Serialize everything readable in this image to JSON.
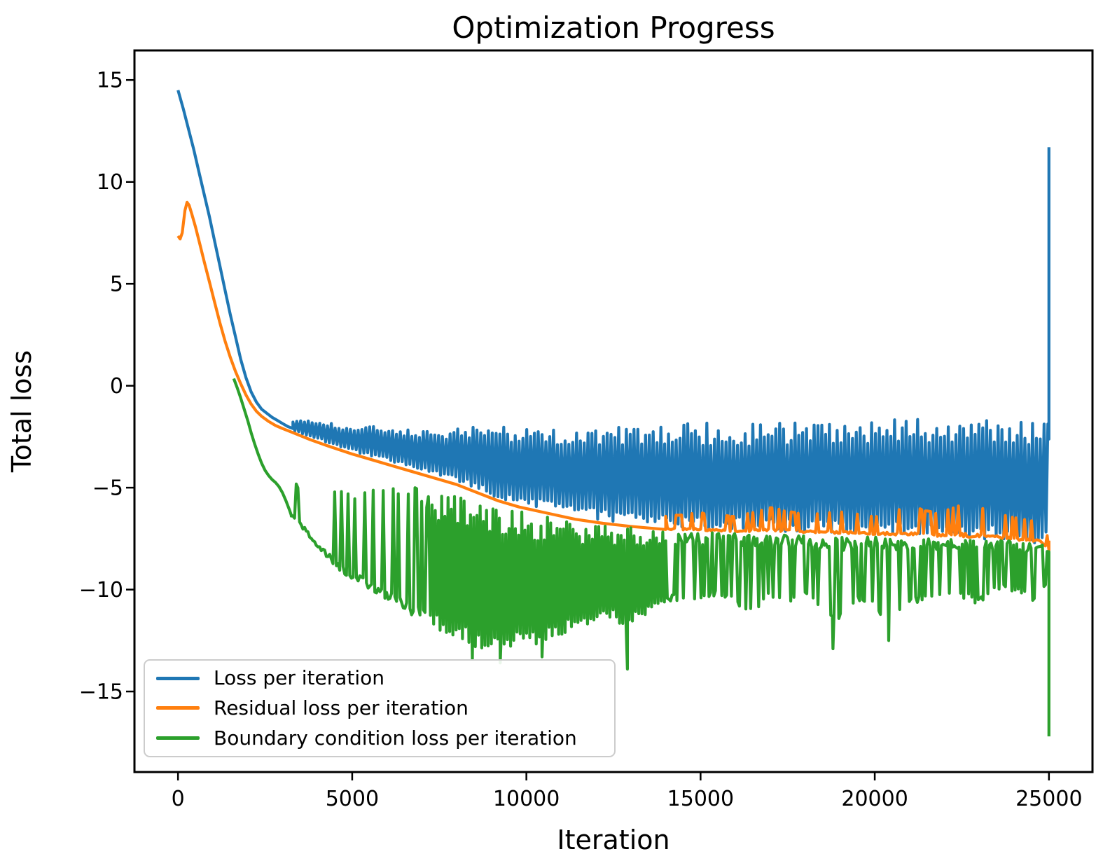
{
  "chart_data": {
    "type": "line",
    "title": "Optimization Progress",
    "xlabel": "Iteration",
    "ylabel": "Total loss",
    "x_ticks": [
      0,
      5000,
      10000,
      15000,
      20000,
      25000
    ],
    "y_ticks": [
      -15,
      -10,
      -5,
      0,
      5,
      10,
      15
    ],
    "xlim": [
      -1250,
      26250
    ],
    "ylim": [
      -18.95,
      16.45
    ],
    "grid": false,
    "legend_position": "lower left",
    "series": [
      {
        "name": "Loss per iteration",
        "color": "#1f77b4",
        "smooth": [
          [
            0,
            14.5
          ],
          [
            150,
            13.6
          ],
          [
            300,
            12.6
          ],
          [
            450,
            11.6
          ],
          [
            600,
            10.5
          ],
          [
            750,
            9.4
          ],
          [
            900,
            8.3
          ],
          [
            1050,
            7.1
          ],
          [
            1200,
            5.9
          ],
          [
            1350,
            4.7
          ],
          [
            1500,
            3.5
          ],
          [
            1650,
            2.4
          ],
          [
            1800,
            1.3
          ],
          [
            1950,
            0.4
          ],
          [
            2100,
            -0.3
          ],
          [
            2250,
            -0.8
          ],
          [
            2400,
            -1.15
          ],
          [
            2550,
            -1.35
          ],
          [
            2700,
            -1.55
          ],
          [
            2850,
            -1.7
          ],
          [
            3000,
            -1.85
          ],
          [
            3150,
            -2.0
          ],
          [
            3300,
            -2.1
          ]
        ],
        "bands": [
          {
            "mode": "fill",
            "from": 3300,
            "to": 25000,
            "step": 55,
            "nodes": [
              [
                3300,
                -2.2,
                -1.7
              ],
              [
                3800,
                -2.5,
                -1.6
              ],
              [
                4300,
                -2.8,
                -1.8
              ],
              [
                5000,
                -3.2,
                -2.0
              ],
              [
                5600,
                -3.5,
                -2.0
              ],
              [
                6200,
                -3.8,
                -2.1
              ],
              [
                6800,
                -4.1,
                -2.2
              ],
              [
                7400,
                -4.4,
                -2.2
              ],
              [
                8000,
                -4.7,
                -2.1
              ],
              [
                8600,
                -5.1,
                -2.0
              ],
              [
                9200,
                -5.5,
                -2.0
              ],
              [
                9800,
                -5.8,
                -1.95
              ],
              [
                10600,
                -6.1,
                -2.0
              ],
              [
                11400,
                -6.4,
                -1.9
              ],
              [
                12200,
                -6.6,
                -2.0
              ],
              [
                13000,
                -6.75,
                -1.85
              ],
              [
                14000,
                -6.9,
                -1.9
              ],
              [
                15000,
                -7.0,
                -1.8
              ],
              [
                16000,
                -7.05,
                -1.9
              ],
              [
                17000,
                -7.1,
                -1.75
              ],
              [
                18000,
                -7.2,
                -1.8
              ],
              [
                19000,
                -7.25,
                -1.65
              ],
              [
                20000,
                -7.3,
                -1.75
              ],
              [
                21000,
                -7.35,
                -1.6
              ],
              [
                22000,
                -7.45,
                -1.65
              ],
              [
                23000,
                -7.5,
                -1.5
              ],
              [
                24000,
                -7.6,
                -1.6
              ],
              [
                25000,
                -7.8,
                -1.7
              ]
            ]
          }
        ],
        "spikes": [
          [
            25000,
            11.7
          ]
        ]
      },
      {
        "name": "Residual loss per iteration",
        "color": "#ff7f0e",
        "smooth": [
          [
            0,
            7.35
          ],
          [
            60,
            7.2
          ],
          [
            120,
            7.5
          ],
          [
            200,
            8.6
          ],
          [
            260,
            9.0
          ],
          [
            320,
            8.85
          ],
          [
            400,
            8.4
          ],
          [
            500,
            7.8
          ],
          [
            620,
            7.0
          ],
          [
            750,
            6.1
          ],
          [
            900,
            5.1
          ],
          [
            1050,
            4.1
          ],
          [
            1200,
            3.1
          ],
          [
            1350,
            2.2
          ],
          [
            1500,
            1.4
          ],
          [
            1650,
            0.7
          ],
          [
            1800,
            0.1
          ],
          [
            1950,
            -0.45
          ],
          [
            2100,
            -0.9
          ],
          [
            2250,
            -1.25
          ],
          [
            2400,
            -1.5
          ],
          [
            2600,
            -1.75
          ],
          [
            2800,
            -1.95
          ],
          [
            3000,
            -2.1
          ],
          [
            3300,
            -2.3
          ],
          [
            3800,
            -2.65
          ],
          [
            4300,
            -2.95
          ],
          [
            5000,
            -3.35
          ],
          [
            5600,
            -3.65
          ],
          [
            6200,
            -3.95
          ],
          [
            6800,
            -4.25
          ],
          [
            7400,
            -4.55
          ],
          [
            8000,
            -4.85
          ],
          [
            8600,
            -5.25
          ],
          [
            9200,
            -5.65
          ],
          [
            9800,
            -5.95
          ],
          [
            10600,
            -6.25
          ],
          [
            11400,
            -6.55
          ],
          [
            12200,
            -6.75
          ],
          [
            13000,
            -6.9
          ],
          [
            14000,
            -7.05
          ]
        ],
        "bands": [
          {
            "mode": "needle-up",
            "from": 14000,
            "to": 25000,
            "step": 50,
            "nodes": [
              [
                14000,
                -7.1,
                -6.3
              ],
              [
                15000,
                -7.15,
                -6.1
              ],
              [
                16000,
                -7.2,
                -6.3
              ],
              [
                17000,
                -7.2,
                -5.8
              ],
              [
                18000,
                -7.25,
                -6.2
              ],
              [
                19000,
                -7.3,
                -6.0
              ],
              [
                20000,
                -7.35,
                -6.3
              ],
              [
                21000,
                -7.4,
                -5.7
              ],
              [
                21800,
                -7.45,
                -6.1
              ],
              [
                22600,
                -7.5,
                -5.5
              ],
              [
                23400,
                -7.55,
                -6.0
              ],
              [
                24200,
                -7.65,
                -6.4
              ],
              [
                24800,
                -7.75,
                -6.5
              ],
              [
                25000,
                -8.15,
                -7.5
              ]
            ]
          }
        ],
        "spikes": []
      },
      {
        "name": "Boundary condition loss per iteration",
        "color": "#2ca02c",
        "smooth": [
          [
            1600,
            0.35
          ],
          [
            1700,
            -0.1
          ],
          [
            1800,
            -0.6
          ],
          [
            1900,
            -1.15
          ],
          [
            2000,
            -1.7
          ],
          [
            2100,
            -2.3
          ],
          [
            2200,
            -2.85
          ],
          [
            2300,
            -3.35
          ],
          [
            2400,
            -3.8
          ],
          [
            2500,
            -4.15
          ],
          [
            2600,
            -4.4
          ],
          [
            2700,
            -4.6
          ],
          [
            2800,
            -4.75
          ],
          [
            2900,
            -4.95
          ],
          [
            3000,
            -5.25
          ],
          [
            3100,
            -5.65
          ],
          [
            3200,
            -6.1
          ],
          [
            3250,
            -6.35
          ]
        ],
        "bands": [
          {
            "mode": "needle-up",
            "from": 3250,
            "to": 7200,
            "step": 48,
            "nodes": [
              [
                3250,
                -6.5,
                -4.8
              ],
              [
                3600,
                -7.2,
                -4.8
              ],
              [
                4000,
                -8.1,
                -4.85
              ],
              [
                4400,
                -8.9,
                -4.9
              ],
              [
                4800,
                -9.5,
                -4.85
              ],
              [
                5200,
                -9.95,
                -4.9
              ],
              [
                5600,
                -10.4,
                -4.9
              ],
              [
                6000,
                -10.8,
                -4.95
              ],
              [
                6400,
                -11.2,
                -4.9
              ],
              [
                6800,
                -11.6,
                -4.95
              ],
              [
                7200,
                -11.9,
                -5.0
              ]
            ]
          },
          {
            "mode": "fill",
            "from": 7200,
            "to": 14000,
            "step": 46,
            "nodes": [
              [
                7200,
                -11.9,
                -5.0
              ],
              [
                7600,
                -12.2,
                -5.15
              ],
              [
                8000,
                -12.5,
                -5.3
              ],
              [
                8400,
                -12.8,
                -5.5
              ],
              [
                8800,
                -13.0,
                -5.65
              ],
              [
                9200,
                -13.2,
                -5.75
              ],
              [
                9600,
                -12.9,
                -6.0
              ],
              [
                10000,
                -12.6,
                -6.1
              ],
              [
                10400,
                -12.9,
                -6.3
              ],
              [
                10800,
                -12.4,
                -6.45
              ],
              [
                11200,
                -12.1,
                -6.55
              ],
              [
                11600,
                -11.9,
                -6.65
              ],
              [
                12000,
                -11.6,
                -6.7
              ],
              [
                12400,
                -11.4,
                -6.8
              ],
              [
                12800,
                -12.0,
                -6.85
              ],
              [
                13200,
                -11.5,
                -6.95
              ],
              [
                13600,
                -11.1,
                -7.0
              ],
              [
                14000,
                -10.8,
                -7.05
              ]
            ]
          },
          {
            "mode": "needle-down",
            "from": 14000,
            "to": 25000,
            "step": 46,
            "nodes": [
              [
                14000,
                -10.8,
                -7.15
              ],
              [
                14500,
                -10.5,
                -7.18
              ],
              [
                15000,
                -10.6,
                -7.2
              ],
              [
                15500,
                -10.3,
                -7.2
              ],
              [
                16000,
                -10.8,
                -7.25
              ],
              [
                16500,
                -11.2,
                -7.25
              ],
              [
                17000,
                -10.4,
                -7.28
              ],
              [
                17500,
                -10.7,
                -7.3
              ],
              [
                18000,
                -10.5,
                -7.3
              ],
              [
                18500,
                -11.2,
                -7.32
              ],
              [
                19000,
                -11.6,
                -7.35
              ],
              [
                19500,
                -10.7,
                -7.35
              ],
              [
                20000,
                -11.0,
                -7.4
              ],
              [
                20500,
                -11.9,
                -7.4
              ],
              [
                21000,
                -10.8,
                -7.45
              ],
              [
                21500,
                -10.5,
                -7.45
              ],
              [
                22000,
                -10.6,
                -7.5
              ],
              [
                22500,
                -10.4,
                -7.52
              ],
              [
                23000,
                -10.8,
                -7.55
              ],
              [
                23500,
                -10.0,
                -7.58
              ],
              [
                24000,
                -10.1,
                -7.62
              ],
              [
                24500,
                -10.6,
                -7.68
              ],
              [
                25000,
                -9.8,
                -7.85
              ]
            ]
          }
        ],
        "spikes": [
          [
            8450,
            -13.4
          ],
          [
            9250,
            -13.6
          ],
          [
            10450,
            -13.3
          ],
          [
            12900,
            -13.9
          ],
          [
            18800,
            -12.9
          ],
          [
            20400,
            -12.5
          ],
          [
            25000,
            -17.2
          ]
        ]
      }
    ]
  }
}
